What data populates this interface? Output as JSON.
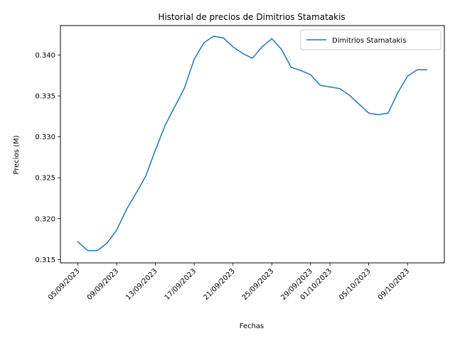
{
  "chart_data": {
    "type": "line",
    "title": "Historial de precios de Dimitrios Stamatakis",
    "xlabel": "Fechas",
    "ylabel": "Precios (M)",
    "ylim": [
      0.3146,
      0.3436
    ],
    "grid": false,
    "legend_position": "top-right",
    "colors": {
      "series": "#1f77b4",
      "axes": "#000000",
      "background": "#ffffff"
    },
    "xticks": [
      "05/09/2023",
      "09/09/2023",
      "13/09/2023",
      "17/09/2023",
      "21/09/2023",
      "25/09/2023",
      "29/09/2023",
      "01/10/2023",
      "05/10/2023",
      "09/10/2023"
    ],
    "yticks": [
      "0.315",
      "0.320",
      "0.325",
      "0.330",
      "0.335",
      "0.340"
    ],
    "x": [
      "05/09/2023",
      "06/09/2023",
      "07/09/2023",
      "08/09/2023",
      "09/09/2023",
      "10/09/2023",
      "11/09/2023",
      "12/09/2023",
      "13/09/2023",
      "14/09/2023",
      "15/09/2023",
      "16/09/2023",
      "17/09/2023",
      "18/09/2023",
      "19/09/2023",
      "20/09/2023",
      "21/09/2023",
      "22/09/2023",
      "23/09/2023",
      "24/09/2023",
      "25/09/2023",
      "26/09/2023",
      "27/09/2023",
      "28/09/2023",
      "29/09/2023",
      "30/09/2023",
      "01/10/2023",
      "02/10/2023",
      "03/10/2023",
      "04/10/2023",
      "05/10/2023",
      "06/10/2023",
      "07/10/2023",
      "08/10/2023",
      "09/10/2023",
      "10/10/2023",
      "11/10/2023"
    ],
    "series": [
      {
        "name": "Dimitrios Stamatakis",
        "values": [
          0.3172,
          0.3161,
          0.3161,
          0.317,
          0.3186,
          0.3211,
          0.3231,
          0.3252,
          0.3284,
          0.3314,
          0.3337,
          0.336,
          0.3395,
          0.3415,
          0.3423,
          0.3421,
          0.341,
          0.3402,
          0.3396,
          0.341,
          0.342,
          0.3407,
          0.3385,
          0.3381,
          0.3376,
          0.3363,
          0.3361,
          0.3359,
          0.3351,
          0.334,
          0.3329,
          0.3327,
          0.3329,
          0.3354,
          0.3374,
          0.3382,
          0.3382
        ]
      }
    ]
  }
}
